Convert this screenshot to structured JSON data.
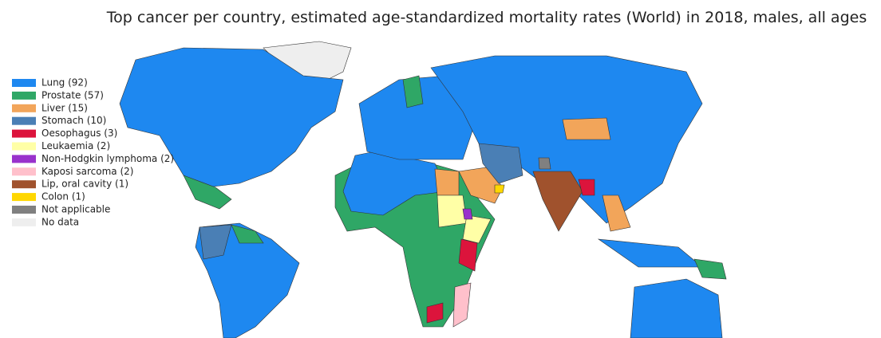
{
  "title": "Top cancer per country, estimated age-standardized mortality rates (World) in 2018, males, all ages",
  "legend": [
    {
      "label": "Lung (92)",
      "color": "#1e88f0"
    },
    {
      "label": "Prostate (57)",
      "color": "#2fa766"
    },
    {
      "label": "Liver (15)",
      "color": "#f2a55a"
    },
    {
      "label": "Stomach (10)",
      "color": "#4a7fb5"
    },
    {
      "label": "Oesophagus (3)",
      "color": "#dc143c"
    },
    {
      "label": "Leukaemia (2)",
      "color": "#ffffa6"
    },
    {
      "label": "Non-Hodgkin lymphoma (2)",
      "color": "#9932cc"
    },
    {
      "label": "Kaposi sarcoma (2)",
      "color": "#ffc0cb"
    },
    {
      "label": "Lip, oral cavity (1)",
      "color": "#a0522d"
    },
    {
      "label": "Colon (1)",
      "color": "#ffd700"
    },
    {
      "label": "Not applicable",
      "color": "#808080"
    },
    {
      "label": "No data",
      "color": "#eeeeee"
    }
  ]
}
